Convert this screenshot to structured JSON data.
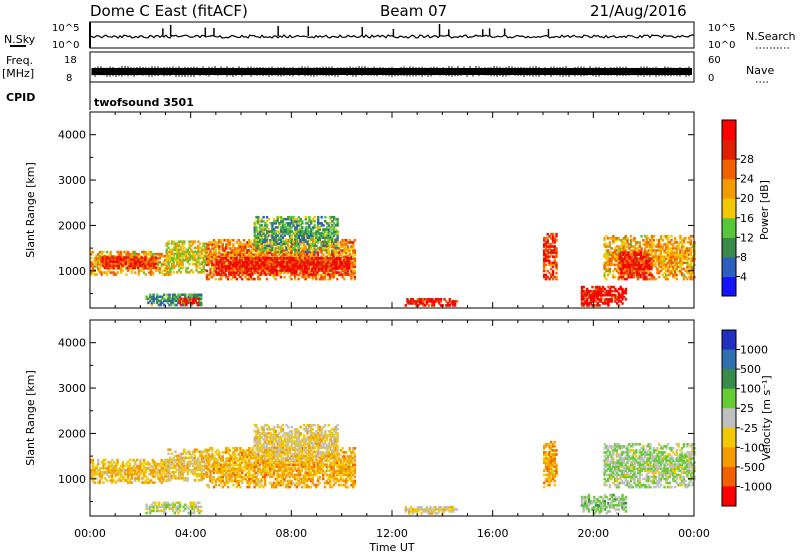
{
  "header": {
    "station": "Dome C East (fitACF)",
    "beam": "Beam 07",
    "date": "21/Aug/2016"
  },
  "noise_panel": {
    "left_label": "N.Sky",
    "left_ticks": [
      "10^5",
      "10^0"
    ],
    "right_label": "N.Search",
    "right_ticks": [
      "10^5",
      "10^0"
    ]
  },
  "freq_panel": {
    "left_label_1": "Freq.",
    "left_label_2": "[MHz]",
    "left_ticks": [
      "18",
      "8"
    ],
    "right_label": "Nave",
    "right_ticks": [
      "60",
      "0"
    ]
  },
  "cpid": {
    "label": "CPID",
    "value": "twofsound 3501"
  },
  "colors": {
    "power_scale": [
      "#1414ff",
      "#2d5fbf",
      "#3a8a4a",
      "#55c83a",
      "#f2c800",
      "#f59a00",
      "#f26000",
      "#e02000",
      "#ff0000"
    ],
    "velocity_scale": [
      "#2030c0",
      "#2f70b0",
      "#3a8a4a",
      "#66cc33",
      "#c0c0c0",
      "#f2c800",
      "#f59a00",
      "#f26000",
      "#ff0000"
    ]
  },
  "chart_data": [
    {
      "type": "heatmap",
      "name": "power",
      "xlabel": "",
      "ylabel": "Slant Range [km]",
      "xlim": [
        0,
        24
      ],
      "ylim": [
        180,
        4500
      ],
      "yticks": [
        1000,
        2000,
        3000,
        4000
      ],
      "colorbar": {
        "label": "Power [dB]",
        "ticks": [
          "4",
          "8",
          "12",
          "16",
          "20",
          "24",
          "28"
        ],
        "range": [
          0,
          30
        ]
      },
      "regions": [
        {
          "t": [
            0.0,
            3.2
          ],
          "r": [
            900,
            1400
          ],
          "v": 18
        },
        {
          "t": [
            0.4,
            2.6
          ],
          "r": [
            1050,
            1300
          ],
          "v": 25
        },
        {
          "t": [
            3.0,
            4.6
          ],
          "r": [
            950,
            1650
          ],
          "v": 15
        },
        {
          "t": [
            4.6,
            10.5
          ],
          "r": [
            800,
            1700
          ],
          "v": 20
        },
        {
          "t": [
            5.0,
            10.3
          ],
          "r": [
            900,
            1300
          ],
          "v": 27
        },
        {
          "t": [
            6.5,
            9.8
          ],
          "r": [
            1400,
            2200
          ],
          "v": 10
        },
        {
          "t": [
            2.2,
            4.4
          ],
          "r": [
            230,
            500
          ],
          "v": 9
        },
        {
          "t": [
            3.5,
            4.3
          ],
          "r": [
            230,
            380
          ],
          "v": 24
        },
        {
          "t": [
            12.5,
            14.6
          ],
          "r": [
            220,
            400
          ],
          "v": 26
        },
        {
          "t": [
            18.0,
            18.5
          ],
          "r": [
            800,
            1800
          ],
          "v": 24
        },
        {
          "t": [
            19.5,
            21.3
          ],
          "r": [
            220,
            650
          ],
          "v": 27
        },
        {
          "t": [
            20.4,
            24.0
          ],
          "r": [
            800,
            1750
          ],
          "v": 18
        },
        {
          "t": [
            21.0,
            22.3
          ],
          "r": [
            800,
            1400
          ],
          "v": 26
        }
      ]
    },
    {
      "type": "heatmap",
      "name": "velocity",
      "xlabel": "Time UT",
      "ylabel": "Slant Range [km]",
      "xlim": [
        0,
        24
      ],
      "ylim": [
        180,
        4500
      ],
      "xticks": [
        "00:00",
        "04:00",
        "08:00",
        "12:00",
        "16:00",
        "20:00",
        "00:00"
      ],
      "yticks": [
        1000,
        2000,
        3000,
        4000
      ],
      "colorbar": {
        "label": "Velocity [m s⁻¹]",
        "ticks": [
          "1000",
          "500",
          "100",
          "25",
          "-25",
          "-100",
          "-500",
          "-1000"
        ],
        "range": [
          -1000,
          1000
        ]
      },
      "regions": [
        {
          "t": [
            0.0,
            3.2
          ],
          "r": [
            900,
            1400
          ],
          "v": -300
        },
        {
          "t": [
            3.0,
            4.6
          ],
          "r": [
            950,
            1650
          ],
          "v": -200
        },
        {
          "t": [
            4.6,
            10.5
          ],
          "r": [
            800,
            1700
          ],
          "v": -350
        },
        {
          "t": [
            6.5,
            9.8
          ],
          "r": [
            1400,
            2200
          ],
          "v": -150
        },
        {
          "t": [
            2.2,
            4.4
          ],
          "r": [
            230,
            500
          ],
          "v": 0
        },
        {
          "t": [
            12.5,
            14.6
          ],
          "r": [
            220,
            400
          ],
          "v": -120
        },
        {
          "t": [
            18.0,
            18.5
          ],
          "r": [
            800,
            1800
          ],
          "v": -400
        },
        {
          "t": [
            19.5,
            21.3
          ],
          "r": [
            220,
            650
          ],
          "v": 150
        },
        {
          "t": [
            20.4,
            24.0
          ],
          "r": [
            800,
            1750
          ],
          "v": 80
        }
      ]
    }
  ]
}
